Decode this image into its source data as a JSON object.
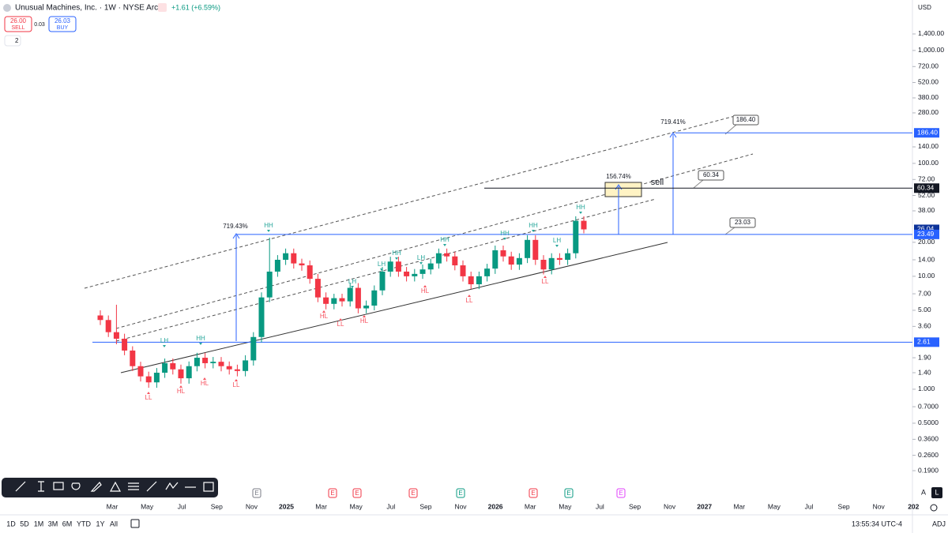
{
  "header": {
    "title": "Unusual Machines, Inc. · 1W · NYSE Arca",
    "change": "+1.61 (+6.59%)",
    "sell_price": "26.00",
    "sell_label": "SELL",
    "spread": "0.03",
    "buy_price": "26.03",
    "buy_label": "BUY",
    "indicators": "2"
  },
  "chart_data": {
    "type": "candlestick",
    "currency": "USD",
    "x_labels": [
      "Mar",
      "May",
      "Jul",
      "Sep",
      "Nov",
      "2025",
      "Mar",
      "May",
      "Jul",
      "Sep",
      "Nov",
      "2026",
      "Mar",
      "May",
      "Jul",
      "Sep",
      "Nov",
      "2027",
      "Mar",
      "May",
      "Jul",
      "Sep",
      "Nov",
      "202"
    ],
    "open": [
      4.5,
      4.1,
      3.2,
      2.8,
      2.2,
      1.6,
      1.3,
      1.15,
      1.4,
      1.7,
      1.5,
      1.25,
      1.6,
      1.9,
      1.7,
      1.75,
      1.6,
      1.5,
      1.45,
      1.8,
      2.9,
      6.5,
      11,
      14,
      16,
      13,
      12.5,
      9.5,
      6.5,
      5.7,
      6.4,
      6.0,
      7.9,
      5.2,
      5.5,
      7.5,
      11,
      13.5,
      11,
      10,
      10.5,
      11.5,
      13,
      16,
      15,
      12.5,
      10,
      8.5,
      10,
      11.7,
      17,
      15,
      12.7,
      14.5,
      21,
      14,
      11.5,
      14.5,
      14,
      16,
      31
    ],
    "high": [
      5.0,
      4.5,
      5.6,
      3.1,
      2.4,
      1.75,
      1.43,
      1.54,
      1.87,
      1.87,
      1.65,
      1.76,
      2.1,
      2.1,
      1.93,
      1.93,
      1.76,
      1.65,
      2.0,
      3.2,
      7.2,
      22,
      15.4,
      17.6,
      17.6,
      14.3,
      13.8,
      10.5,
      7.2,
      7.0,
      7.0,
      8.7,
      8.7,
      6.1,
      8.3,
      12.1,
      14.9,
      14.9,
      12.1,
      11.6,
      12.7,
      14.3,
      17.6,
      17.6,
      16.5,
      13.8,
      11,
      11,
      12.9,
      18.7,
      18.7,
      16.5,
      16,
      23.1,
      23.1,
      15.4,
      16,
      16,
      17.6,
      34,
      34
    ],
    "low": [
      3.7,
      2.9,
      2.5,
      2.0,
      1.45,
      1.17,
      1.03,
      1.03,
      1.26,
      1.35,
      1.12,
      1.12,
      1.44,
      1.53,
      1.53,
      1.44,
      1.35,
      1.3,
      1.3,
      1.62,
      2.6,
      5.9,
      9.9,
      12.6,
      11.7,
      11.2,
      8.6,
      5.9,
      5.1,
      5.1,
      5.4,
      5.4,
      4.7,
      4.7,
      5.0,
      6.8,
      9.9,
      9.9,
      9.0,
      9.0,
      9.5,
      10.4,
      11.7,
      13.5,
      11.3,
      9.0,
      7.7,
      7.7,
      9.0,
      10.5,
      13.5,
      11.4,
      11.4,
      13.1,
      12.6,
      10.4,
      10.4,
      12.6,
      12.6,
      14.4,
      24
    ],
    "close": [
      4.1,
      3.2,
      2.8,
      2.2,
      1.6,
      1.3,
      1.15,
      1.4,
      1.7,
      1.5,
      1.25,
      1.6,
      1.9,
      1.7,
      1.75,
      1.6,
      1.5,
      1.45,
      1.8,
      2.9,
      6.5,
      11,
      14,
      16,
      13,
      12.5,
      9.5,
      6.5,
      5.7,
      6.4,
      6.0,
      7.9,
      5.2,
      5.5,
      7.5,
      11,
      13.5,
      11,
      10,
      10.5,
      11.5,
      13,
      16,
      15,
      12.5,
      10,
      8.5,
      10,
      11.7,
      17,
      15,
      12.7,
      14.5,
      21,
      14,
      11.5,
      14.5,
      14,
      16,
      31,
      26.03
    ],
    "up_color": "#089981",
    "down_color": "#f23645",
    "ylim": [
      0.11,
      2027
    ],
    "log_scale": true,
    "yticks": [
      {
        "value": 1400,
        "label": "1,400.00"
      },
      {
        "value": 1000,
        "label": "1,000.00"
      },
      {
        "value": 720,
        "label": "720.00"
      },
      {
        "value": 520,
        "label": "520.00"
      },
      {
        "value": 380,
        "label": "380.00"
      },
      {
        "value": 280,
        "label": "280.00"
      },
      {
        "value": 140,
        "label": "140.00"
      },
      {
        "value": 100,
        "label": "100.00"
      },
      {
        "value": 72,
        "label": "72.00"
      },
      {
        "value": 52,
        "label": "52.00"
      },
      {
        "value": 38,
        "label": "38.00"
      },
      {
        "value": 20,
        "label": "20.00"
      },
      {
        "value": 14,
        "label": "14.00"
      },
      {
        "value": 10,
        "label": "10.00"
      },
      {
        "value": 7,
        "label": "7.00"
      },
      {
        "value": 5,
        "label": "5.00"
      },
      {
        "value": 3.6,
        "label": "3.60"
      },
      {
        "value": 1.9,
        "label": "1.90"
      },
      {
        "value": 1.4,
        "label": "1.40"
      },
      {
        "value": 1,
        "label": "1.000"
      },
      {
        "value": 0.7,
        "label": "0.7000"
      },
      {
        "value": 0.5,
        "label": "0.5000"
      },
      {
        "value": 0.36,
        "label": "0.3600"
      },
      {
        "value": 0.26,
        "label": "0.2600"
      },
      {
        "value": 0.19,
        "label": "0.1900"
      }
    ],
    "price_lines": [
      {
        "value": 186.4,
        "label": "186.40",
        "color": "#2962ff"
      },
      {
        "value": 60.34,
        "label": "60.34",
        "color": "#131722"
      },
      {
        "value": 26.04,
        "label": "26.04",
        "color": "#0c3299"
      },
      {
        "value": 23.49,
        "label": "23.49",
        "color": "#2962ff"
      },
      {
        "value": 2.61,
        "label": "2.61",
        "color": "#2962ff"
      }
    ],
    "annotations": [
      "719.43%",
      "156.74%",
      "719.41%",
      "sell"
    ],
    "callouts": [
      "186.40",
      "60.34",
      "23.03"
    ],
    "swings": [
      "LH",
      "HH",
      "HH",
      "LH",
      "LH",
      "HH",
      "LH",
      "HH",
      "HH",
      "HH",
      "LH",
      "HH",
      "LL",
      "HL",
      "HL",
      "LL",
      "HL",
      "LL",
      "HL",
      "HL",
      "LL",
      "LL"
    ],
    "earnings": [
      "E",
      "E",
      "E",
      "E",
      "E",
      "E",
      "E",
      "E"
    ]
  },
  "toolbar": {
    "timeframes": [
      "1D",
      "5D",
      "1M",
      "3M",
      "6M",
      "YTD",
      "1Y",
      "All"
    ],
    "clock": "13:55:34 UTC-4",
    "adj": "ADJ",
    "auto": "A",
    "log": "L"
  }
}
